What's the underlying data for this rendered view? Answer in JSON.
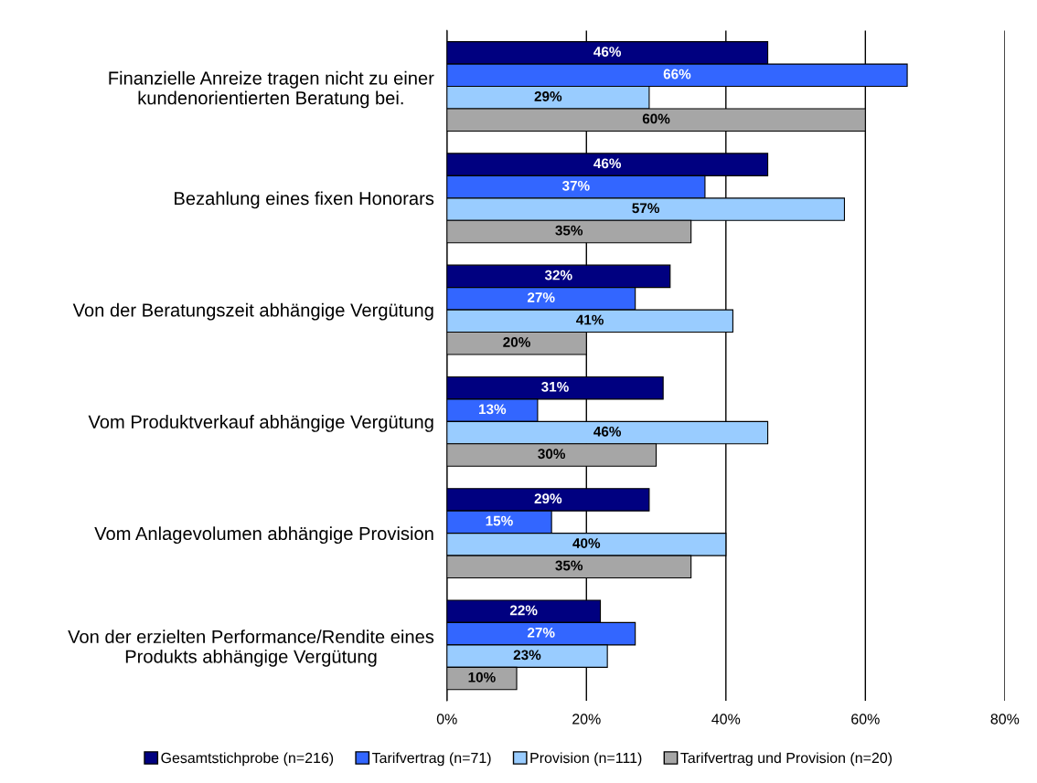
{
  "chart_data": {
    "type": "bar",
    "orientation": "horizontal",
    "categories": [
      "Finanzielle Anreize tragen nicht zu einer\nkundenorientierten Beratung bei.",
      "Bezahlung eines fixen Honorars",
      "Von der Beratungszeit abhängige Vergütung",
      "Vom Produktverkauf abhängige Vergütung",
      "Vom Anlagevolumen abhängige Provision",
      "Von der erzielten Performance/Rendite eines\nProdukts abhängige Vergütung"
    ],
    "series": [
      {
        "name": "Gesamtstichprobe (n=216)",
        "color": "#000080",
        "values": [
          46,
          46,
          32,
          31,
          29,
          22
        ],
        "value_labels": [
          "46%",
          "46%",
          "32%",
          "31%",
          "29%",
          "22%"
        ]
      },
      {
        "name": "Tarifvertrag (n=71)",
        "color": "#3366ff",
        "values": [
          66,
          37,
          27,
          13,
          15,
          27
        ],
        "value_labels": [
          "66%",
          "37%",
          "27%",
          "13%",
          "15%",
          "27%"
        ]
      },
      {
        "name": "Provision (n=111)",
        "color": "#99ccff",
        "values": [
          29,
          57,
          41,
          46,
          40,
          23
        ],
        "value_labels": [
          "29%",
          "57%",
          "41%",
          "46%",
          "40%",
          "23%"
        ]
      },
      {
        "name": "Tarifvertrag und Provision (n=20)",
        "color": "#a6a6a6",
        "values": [
          60,
          35,
          20,
          30,
          35,
          10
        ],
        "value_labels": [
          "60%",
          "35%",
          "20%",
          "30%",
          "35%",
          "10%"
        ]
      }
    ],
    "xlim": [
      0,
      80
    ],
    "xticks": [
      {
        "value": 0,
        "label": "0%"
      },
      {
        "value": 20,
        "label": "20%"
      },
      {
        "value": 40,
        "label": "40%"
      },
      {
        "value": 60,
        "label": "60%"
      },
      {
        "value": 80,
        "label": "80%"
      }
    ],
    "grid": "x",
    "legend": "bottom"
  }
}
